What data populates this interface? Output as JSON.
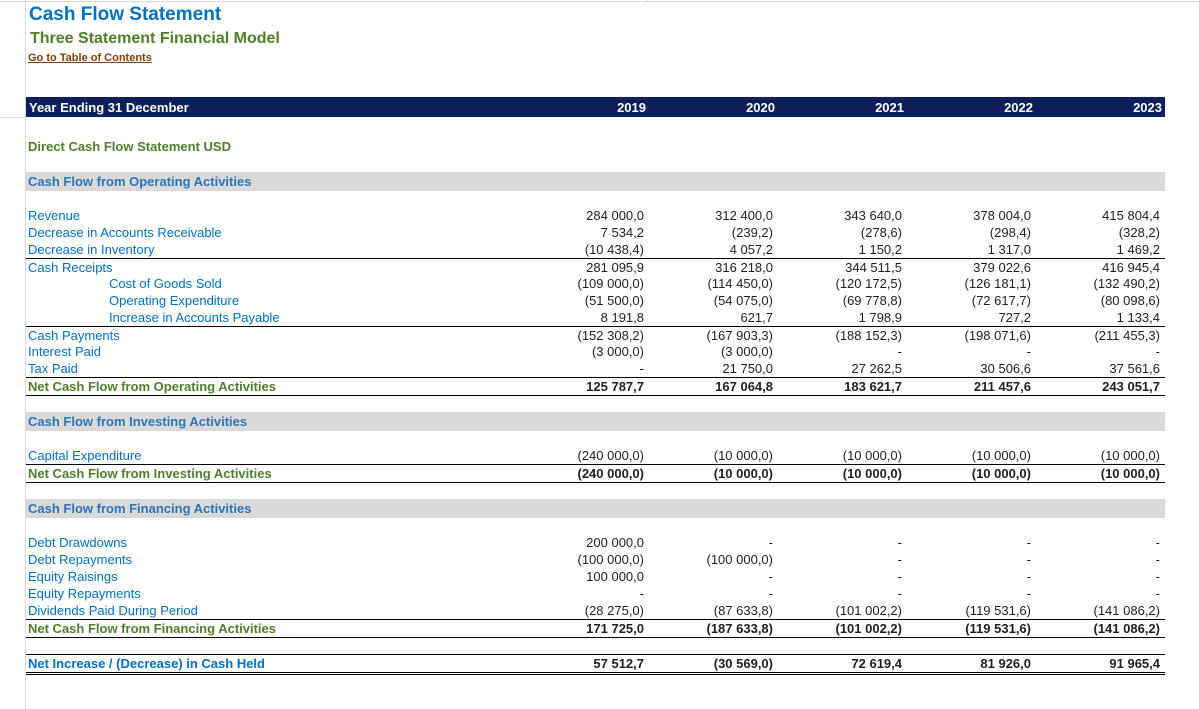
{
  "header": {
    "title": "Cash Flow Statement",
    "subtitle": "Three Statement Financial Model",
    "toc_link": "Go to Table of Contents"
  },
  "year_bar": {
    "label": "Year Ending 31 December",
    "years": [
      "2019",
      "2020",
      "2021",
      "2022",
      "2023"
    ]
  },
  "statement_label": "Direct Cash Flow Statement  USD",
  "operating": {
    "heading": "Cash Flow from Operating Activities",
    "rows": [
      {
        "label": "Revenue",
        "values": [
          "284 000,0",
          "312 400,0",
          "343 640,0",
          "378 004,0",
          "415 804,4"
        ]
      },
      {
        "label": "Decrease in Accounts Receivable",
        "values": [
          "7 534,2",
          "(239,2)",
          "(278,6)",
          "(298,4)",
          "(328,2)"
        ]
      },
      {
        "label": "Decrease in Inventory",
        "values": [
          "(10 438,4)",
          "4 057,2",
          "1 150,2",
          "1 317,0",
          "1 469,2"
        ]
      },
      {
        "label": "Cash Receipts",
        "values": [
          "281 095,9",
          "316 218,0",
          "344 511,5",
          "379 022,6",
          "416 945,4"
        ]
      },
      {
        "label": "Cost of Goods Sold",
        "values": [
          "(109 000,0)",
          "(114 450,0)",
          "(120 172,5)",
          "(126 181,1)",
          "(132 490,2)"
        ]
      },
      {
        "label": "Operating Expenditure",
        "values": [
          "(51 500,0)",
          "(54 075,0)",
          "(69 778,8)",
          "(72 617,7)",
          "(80 098,6)"
        ]
      },
      {
        "label": "Increase in Accounts Payable",
        "values": [
          "8 191,8",
          "621,7",
          "1 798,9",
          "727,2",
          "1 133,4"
        ]
      },
      {
        "label": "Cash Payments",
        "values": [
          "(152 308,2)",
          "(167 903,3)",
          "(188 152,3)",
          "(198 071,6)",
          "(211 455,3)"
        ]
      },
      {
        "label": "Interest Paid",
        "values": [
          "(3 000,0)",
          "(3 000,0)",
          "-",
          "-",
          "-"
        ]
      },
      {
        "label": "Tax Paid",
        "values": [
          "-",
          "21 750,0",
          "27 262,5",
          "30 506,6",
          "37 561,6"
        ]
      }
    ],
    "total": {
      "label": "Net Cash Flow from Operating Activities",
      "values": [
        "125 787,7",
        "167 064,8",
        "183 621,7",
        "211 457,6",
        "243 051,7"
      ]
    }
  },
  "investing": {
    "heading": "Cash Flow from Investing Activities",
    "rows": [
      {
        "label": "Capital Expenditure",
        "values": [
          "(240 000,0)",
          "(10 000,0)",
          "(10 000,0)",
          "(10 000,0)",
          "(10 000,0)"
        ]
      }
    ],
    "total": {
      "label": "Net Cash Flow from Investing Activities",
      "values": [
        "(240 000,0)",
        "(10 000,0)",
        "(10 000,0)",
        "(10 000,0)",
        "(10 000,0)"
      ]
    }
  },
  "financing": {
    "heading": "Cash Flow from Financing Activities",
    "rows": [
      {
        "label": "Debt Drawdowns",
        "values": [
          "200 000,0",
          "-",
          "-",
          "-",
          "-"
        ]
      },
      {
        "label": "Debt Repayments",
        "values": [
          "(100 000,0)",
          "(100 000,0)",
          "-",
          "-",
          "-"
        ]
      },
      {
        "label": "Equity Raisings",
        "values": [
          "100 000,0",
          "-",
          "-",
          "-",
          "-"
        ]
      },
      {
        "label": "Equity Repayments",
        "values": [
          "-",
          "-",
          "-",
          "-",
          "-"
        ]
      },
      {
        "label": "Dividends Paid During Period",
        "values": [
          "(28 275,0)",
          "(87 633,8)",
          "(101 002,2)",
          "(119 531,6)",
          "(141 086,2)"
        ]
      }
    ],
    "total": {
      "label": "Net Cash Flow from Financing Activities",
      "values": [
        "171 725,0",
        "(187 633,8)",
        "(101 002,2)",
        "(119 531,6)",
        "(141 086,2)"
      ]
    }
  },
  "net_change": {
    "label": "Net Increase / (Decrease) in Cash Held",
    "values": [
      "57 512,7",
      "(30 569,0)",
      "72 619,4",
      "81 926,0",
      "91 965,4"
    ]
  }
}
